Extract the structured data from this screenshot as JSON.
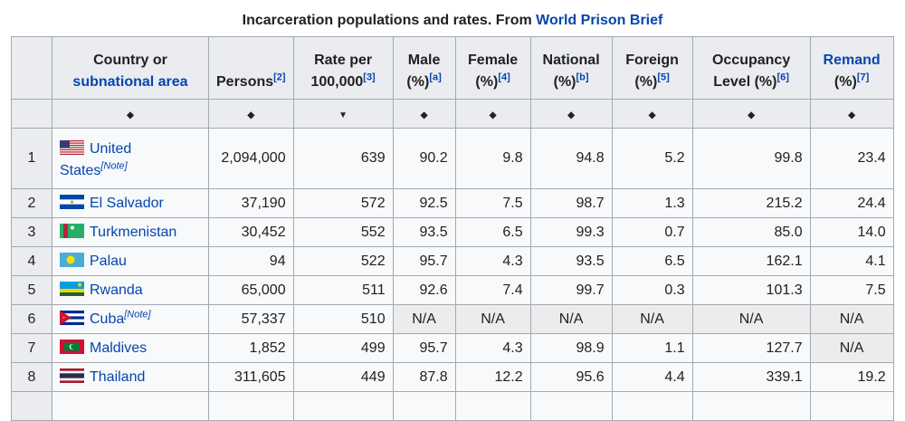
{
  "caption": {
    "text": "Incarceration populations and rates. From ",
    "link": "World Prison Brief"
  },
  "headers": {
    "country_line1": "Country or",
    "country_line2": "subnational area",
    "persons": "Persons",
    "persons_ref": "[2]",
    "rate_line1": "Rate per",
    "rate_line2": "100,000",
    "rate_ref": "[3]",
    "male_line1": "Male",
    "male_line2": "(%)",
    "male_ref": "[a]",
    "female_line1": "Female",
    "female_line2": "(%)",
    "female_ref": "[4]",
    "national_line1": "National",
    "national_line2": "(%)",
    "national_ref": "[b]",
    "foreign_line1": "Foreign",
    "foreign_line2": "(%)",
    "foreign_ref": "[5]",
    "occupancy_line1": "Occupancy",
    "occupancy_line2": "Level (%)",
    "occupancy_ref": "[6]",
    "remand_line1": "Remand",
    "remand_line2": "(%)",
    "remand_ref": "[7]"
  },
  "sort_icons": {
    "both": "◆",
    "desc": "▼"
  },
  "rows": [
    {
      "rank": "1",
      "country": "United States",
      "note": "[Note]",
      "flag": "us",
      "persons": "2,094,000",
      "rate": "639",
      "male": "90.2",
      "female": "9.8",
      "national": "94.8",
      "foreign": "5.2",
      "occupancy": "99.8",
      "remand": "23.4"
    },
    {
      "rank": "2",
      "country": "El Salvador",
      "flag": "sv",
      "persons": "37,190",
      "rate": "572",
      "male": "92.5",
      "female": "7.5",
      "national": "98.7",
      "foreign": "1.3",
      "occupancy": "215.2",
      "remand": "24.4"
    },
    {
      "rank": "3",
      "country": "Turkmenistan",
      "flag": "tm",
      "persons": "30,452",
      "rate": "552",
      "male": "93.5",
      "female": "6.5",
      "national": "99.3",
      "foreign": "0.7",
      "occupancy": "85.0",
      "remand": "14.0"
    },
    {
      "rank": "4",
      "country": "Palau",
      "flag": "pw",
      "persons": "94",
      "rate": "522",
      "male": "95.7",
      "female": "4.3",
      "national": "93.5",
      "foreign": "6.5",
      "occupancy": "162.1",
      "remand": "4.1"
    },
    {
      "rank": "5",
      "country": "Rwanda",
      "flag": "rw",
      "persons": "65,000",
      "rate": "511",
      "male": "92.6",
      "female": "7.4",
      "national": "99.7",
      "foreign": "0.3",
      "occupancy": "101.3",
      "remand": "7.5"
    },
    {
      "rank": "6",
      "country": "Cuba",
      "note": "[Note]",
      "flag": "cu",
      "persons": "57,337",
      "rate": "510",
      "male": "N/A",
      "female": "N/A",
      "national": "N/A",
      "foreign": "N/A",
      "occupancy": "N/A",
      "remand": "N/A"
    },
    {
      "rank": "7",
      "country": "Maldives",
      "flag": "mv",
      "persons": "1,852",
      "rate": "499",
      "male": "95.7",
      "female": "4.3",
      "national": "98.9",
      "foreign": "1.1",
      "occupancy": "127.7",
      "remand": "N/A"
    },
    {
      "rank": "8",
      "country": "Thailand",
      "flag": "th",
      "persons": "311,605",
      "rate": "449",
      "male": "87.8",
      "female": "12.2",
      "national": "95.6",
      "foreign": "4.4",
      "occupancy": "339.1",
      "remand": "19.2"
    }
  ]
}
